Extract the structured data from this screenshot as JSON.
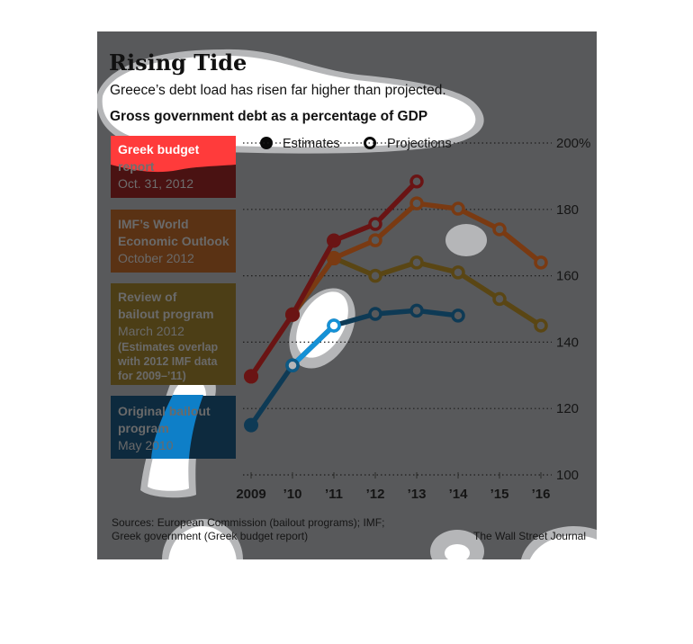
{
  "chart_data": {
    "type": "line",
    "title": "Rising Tide",
    "subtitle": "Greece’s debt load has risen far higher than projected.",
    "ylabel": "Gross government debt as a percentage of GDP",
    "xlabel": "",
    "categories": [
      "2009",
      "’10",
      "’11",
      "’12",
      "’13",
      "’14",
      "’15",
      "’16"
    ],
    "ylim": [
      100,
      200
    ],
    "yticks": [
      {
        "value": 200,
        "label": "200%"
      },
      {
        "value": 180,
        "label": "180"
      },
      {
        "value": 160,
        "label": "160"
      },
      {
        "value": 140,
        "label": "140"
      },
      {
        "value": 120,
        "label": "120"
      },
      {
        "value": 100,
        "label": "100"
      }
    ],
    "grid": "horizontal-dotted",
    "legend": {
      "position": "top",
      "items": [
        {
          "label": "Estimates",
          "marker": "filled-circle"
        },
        {
          "label": "Projections",
          "marker": "hollow-circle"
        }
      ]
    },
    "series": [
      {
        "name": "Greek budget report",
        "labels": [
          "Greek budget",
          "report",
          "Oct. 31, 2012"
        ],
        "color": "#6a1414",
        "box_color": "#4a1212",
        "values": [
          129.7,
          148.3,
          170.6,
          175.6,
          188.4,
          null,
          null,
          null
        ],
        "estimate_count": 3
      },
      {
        "name": "IMF's World Economic Outlook",
        "labels": [
          "IMF’s World",
          "Economic Outlook",
          "October 2012"
        ],
        "color": "#7a3a12",
        "box_color": "#5a3214",
        "values": [
          129.7,
          148.3,
          165.3,
          170.7,
          181.8,
          180.2,
          174.0,
          164.0
        ],
        "estimate_count": 3
      },
      {
        "name": "Review of bailout program",
        "labels": [
          "Review of",
          "bailout program",
          "March 2012"
        ],
        "note": [
          "(Estimates overlap",
          "with 2012 IMF data",
          "for 2009–’11)"
        ],
        "color": "#5a4614",
        "box_color": "#4c3e16",
        "values": [
          129.7,
          148.3,
          165.3,
          160.0,
          164.0,
          161.0,
          153.0,
          145.0
        ],
        "estimate_count": 3
      },
      {
        "name": "Original bailout program",
        "labels": [
          "Original bailout",
          "program",
          "May 2010"
        ],
        "color": "#0e3a55",
        "box_color": "#0d2a3e",
        "values": [
          115.0,
          133.0,
          145.0,
          148.5,
          149.5,
          148.0,
          null,
          null
        ],
        "estimate_count": 1
      }
    ],
    "source": [
      "Sources: European Commission (bailout programs); IMF;",
      "Greek government (Greek budget report)"
    ],
    "credit": "The Wall Street Journal"
  }
}
